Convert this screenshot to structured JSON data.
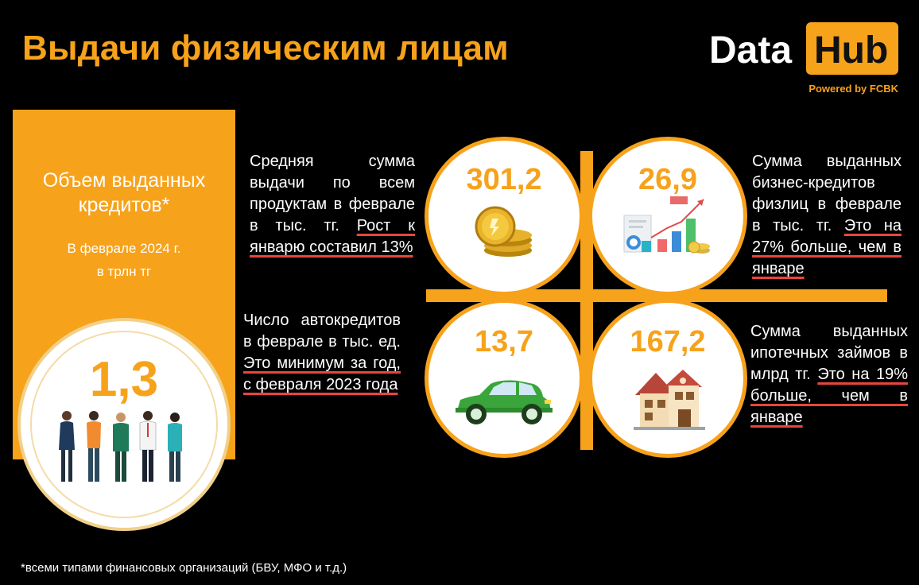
{
  "header": {
    "title": "Выдачи физическим лицам",
    "logo_data": "Data",
    "logo_hub": "Hub",
    "logo_powered": "Powered by FCBK"
  },
  "left_panel": {
    "heading": "Объем выданных кредитов*",
    "subtitle_line1": "В  феврале 2024 г.",
    "subtitle_line2": "в трлн тг",
    "value": "1,3"
  },
  "stats": [
    {
      "value": "301,2",
      "icon": "coins-icon",
      "text": "Средняя сумма выдачи по всем продуктам в феврале в тыс. тг. ",
      "highlight": "Рост к январю составил 13%"
    },
    {
      "value": "26,9",
      "icon": "business-chart-icon",
      "text": "Сумма выданных бизнес-кредитов физлиц в феврале в тыс. тг. ",
      "highlight": "Это на 27% больше, чем в январе"
    },
    {
      "value": "13,7",
      "icon": "car-icon",
      "text": "Число автокредитов в феврале в тыс. ед. ",
      "highlight": "Это минимум за год, с февраля 2023 года"
    },
    {
      "value": "167,2",
      "icon": "house-icon",
      "text": "Сумма выданных ипотечных займов в млрд тг. ",
      "highlight": "Это на 19% больше, чем в январе"
    }
  ],
  "footnote": "*всеми типами финансовых организаций (БВУ, МФО и т.д.)",
  "colors": {
    "accent": "#f7a21b",
    "underline": "#e8453c",
    "background": "#000000"
  }
}
